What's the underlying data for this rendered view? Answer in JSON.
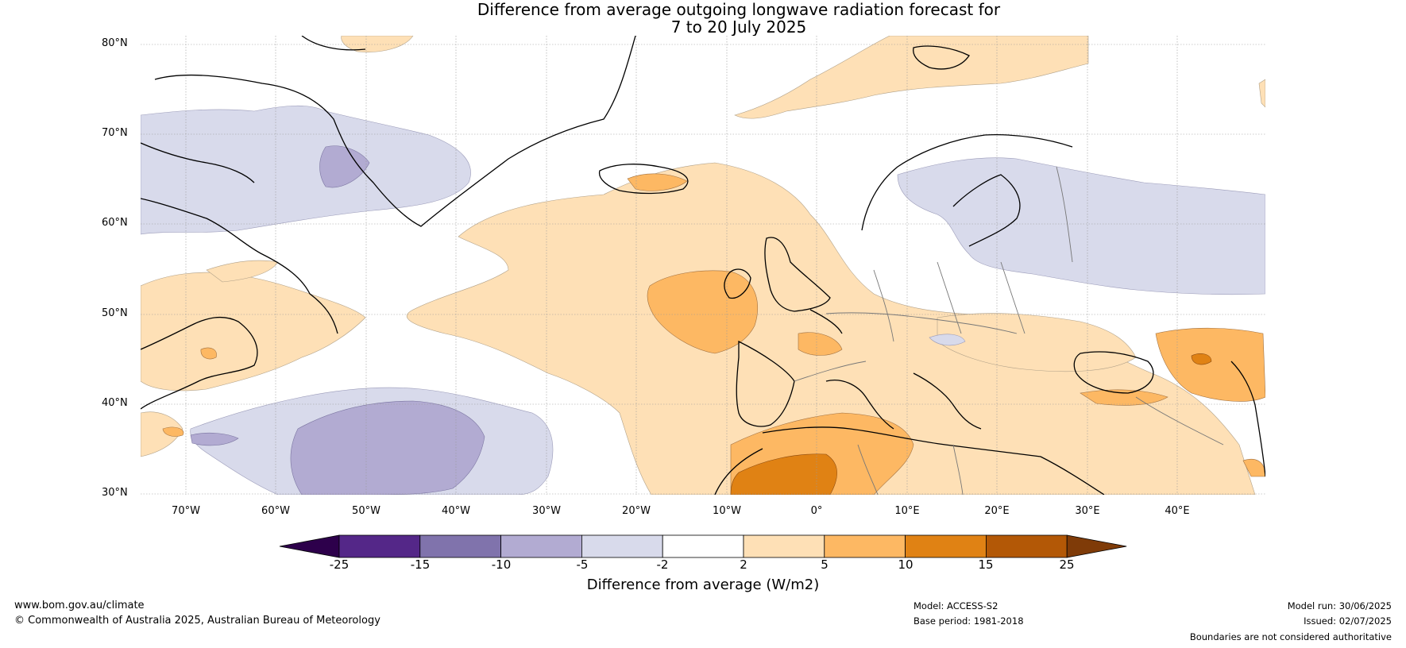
{
  "title": {
    "line1": "Difference from average outgoing longwave radiation forecast for",
    "line2": "7 to 20 July 2025"
  },
  "map": {
    "lat_labels": [
      "80°N",
      "70°N",
      "60°N",
      "50°N",
      "40°N",
      "30°N"
    ],
    "lon_labels": [
      "70°W",
      "60°W",
      "50°W",
      "40°W",
      "30°W",
      "20°W",
      "10°W",
      "0°",
      "10°E",
      "20°E",
      "30°E",
      "40°E"
    ]
  },
  "colorbar": {
    "label": "Difference from average (W/m2)",
    "ticks": [
      "-25",
      "-15",
      "-10",
      "-5",
      "-2",
      "2",
      "5",
      "10",
      "15",
      "25"
    ],
    "colors": [
      "#2d004b",
      "#542788",
      "#8073ac",
      "#b2abd2",
      "#d8daeb",
      "#ffffff",
      "#fee0b6",
      "#fdb863",
      "#e08214",
      "#b35806",
      "#7f3b08"
    ]
  },
  "footer": {
    "website": "www.bom.gov.au/climate",
    "copyright": "© Commonwealth of Australia 2025, Australian Bureau of Meteorology",
    "model": "Model: ACCESS-S2",
    "base_period": "Base period: 1981-2018",
    "model_run": "Model run: 30/06/2025",
    "issued": "Issued: 02/07/2025",
    "disclaimer": "Boundaries are not considered authoritative"
  }
}
